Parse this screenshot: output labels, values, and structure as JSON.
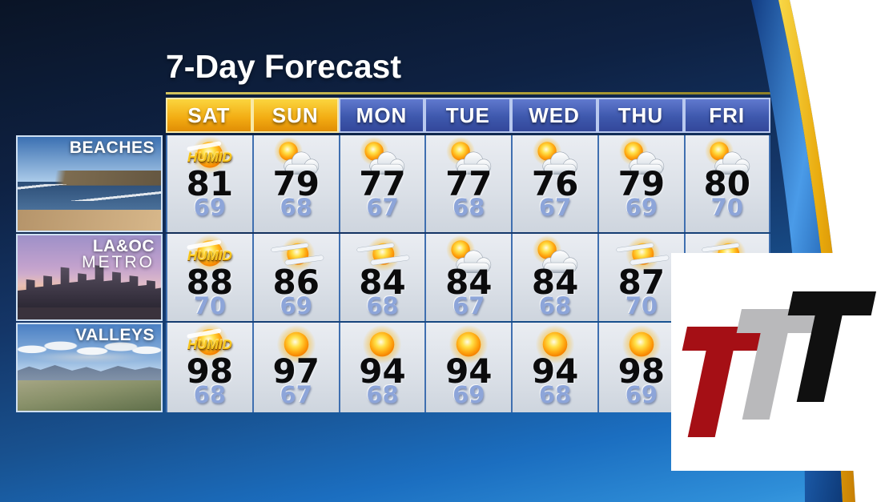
{
  "title": "7-Day Forecast",
  "humid_label": "HUMID",
  "days": [
    "SAT",
    "SUN",
    "MON",
    "TUE",
    "WED",
    "THU",
    "FRI"
  ],
  "header_styles": [
    "gold",
    "gold",
    "blue",
    "blue",
    "blue",
    "blue",
    "blue"
  ],
  "rows": [
    {
      "label": "BEACHES",
      "label2": "",
      "photo": "beach",
      "cells": [
        {
          "icon": "humid-sun",
          "hi": "81",
          "lo": "69"
        },
        {
          "icon": "partly-cloudy",
          "hi": "79",
          "lo": "68"
        },
        {
          "icon": "partly-cloudy",
          "hi": "77",
          "lo": "67"
        },
        {
          "icon": "partly-cloudy",
          "hi": "77",
          "lo": "68"
        },
        {
          "icon": "partly-cloudy",
          "hi": "76",
          "lo": "67"
        },
        {
          "icon": "partly-cloudy",
          "hi": "79",
          "lo": "69"
        },
        {
          "icon": "partly-cloudy",
          "hi": "80",
          "lo": "70"
        }
      ]
    },
    {
      "label": "LA&OC",
      "label2": "METRO",
      "photo": "metro",
      "cells": [
        {
          "icon": "humid-sun",
          "hi": "88",
          "lo": "70"
        },
        {
          "icon": "hazy-sun",
          "hi": "86",
          "lo": "69"
        },
        {
          "icon": "hazy-sun",
          "hi": "84",
          "lo": "68"
        },
        {
          "icon": "partly-cloudy",
          "hi": "84",
          "lo": "67"
        },
        {
          "icon": "partly-cloudy",
          "hi": "84",
          "lo": "68"
        },
        {
          "icon": "hazy-sun",
          "hi": "87",
          "lo": "70"
        },
        {
          "icon": "hazy-sun",
          "hi": "",
          "lo": ""
        }
      ]
    },
    {
      "label": "VALLEYS",
      "label2": "",
      "photo": "valley",
      "cells": [
        {
          "icon": "humid-sun",
          "hi": "98",
          "lo": "68"
        },
        {
          "icon": "sunny",
          "hi": "97",
          "lo": "67"
        },
        {
          "icon": "sunny",
          "hi": "94",
          "lo": "68"
        },
        {
          "icon": "sunny",
          "hi": "94",
          "lo": "69"
        },
        {
          "icon": "sunny",
          "hi": "94",
          "lo": "68"
        },
        {
          "icon": "sunny",
          "hi": "98",
          "lo": "69"
        },
        {
          "icon": null,
          "hi": "",
          "lo": ""
        }
      ]
    }
  ],
  "logo": {
    "letters": [
      "T",
      "T",
      "T"
    ],
    "colors": [
      "#a50f15",
      "#b9b9bb",
      "#101010"
    ]
  },
  "colors": {
    "header_gold": "#f2ab12",
    "header_blue": "#3e58ad",
    "cell_bg": "#dce1e8",
    "high_temp": "#0b0b0c",
    "low_temp": "#8da5d9",
    "gold_rule": "#a89932",
    "swoosh_gold": "#e8a90c",
    "swoosh_blue": "#3f8fe0",
    "background_top": "#0a1426",
    "background_bottom": "#3fa0e4"
  },
  "chart_data": {
    "type": "table",
    "title": "7-Day Forecast",
    "columns": [
      "SAT",
      "SUN",
      "MON",
      "TUE",
      "WED",
      "THU",
      "FRI"
    ],
    "rows": [
      {
        "region": "BEACHES",
        "high": [
          81,
          79,
          77,
          77,
          76,
          79,
          80
        ],
        "low": [
          69,
          68,
          67,
          68,
          67,
          69,
          70
        ],
        "conditions": [
          "humid-sun",
          "partly-cloudy",
          "partly-cloudy",
          "partly-cloudy",
          "partly-cloudy",
          "partly-cloudy",
          "partly-cloudy"
        ]
      },
      {
        "region": "LA&OC METRO",
        "high": [
          88,
          86,
          84,
          84,
          84,
          87,
          null
        ],
        "low": [
          70,
          69,
          68,
          67,
          68,
          70,
          null
        ],
        "conditions": [
          "humid-sun",
          "hazy-sun",
          "hazy-sun",
          "partly-cloudy",
          "partly-cloudy",
          "hazy-sun",
          "hazy-sun"
        ]
      },
      {
        "region": "VALLEYS",
        "high": [
          98,
          97,
          94,
          94,
          94,
          98,
          null
        ],
        "low": [
          68,
          67,
          68,
          69,
          68,
          69,
          null
        ],
        "conditions": [
          "humid-sun",
          "sunny",
          "sunny",
          "sunny",
          "sunny",
          "sunny",
          null
        ]
      }
    ]
  }
}
